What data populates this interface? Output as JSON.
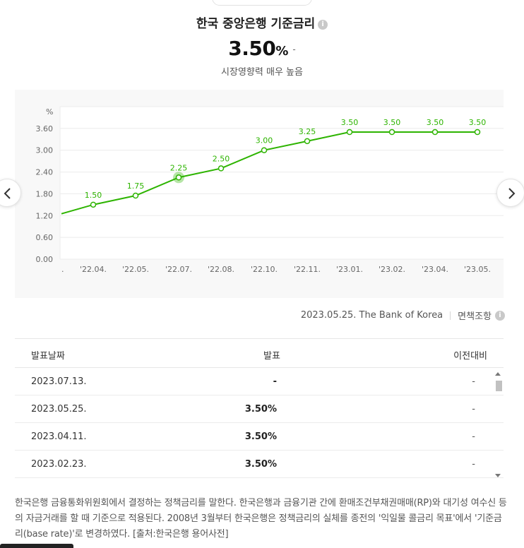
{
  "header": {
    "title": "한국 중앙은행 기준금리",
    "info_icon": "i"
  },
  "rate": {
    "value": "3.50",
    "unit": "%",
    "change": "-",
    "impact": "시장영향력 매우 높음"
  },
  "chart_data": {
    "type": "line",
    "ylabel": "%",
    "yticks": [
      "0.00",
      "0.60",
      "1.20",
      "1.80",
      "2.40",
      "3.00",
      "3.60"
    ],
    "ylim": [
      0,
      4.2
    ],
    "categories": [
      ".",
      "'22.04.",
      "'22.05.",
      "'22.07.",
      "'22.08.",
      "'22.10.",
      "'22.11.",
      "'23.01.",
      "'23.02.",
      "'23.04.",
      "'23.05."
    ],
    "values": [
      1.25,
      1.5,
      1.75,
      2.25,
      2.5,
      3.0,
      3.25,
      3.5,
      3.5,
      3.5,
      3.5
    ],
    "labels": [
      "",
      "1.50",
      "1.75",
      "2.25",
      "2.50",
      "3.00",
      "3.25",
      "3.50",
      "3.50",
      "3.50",
      "3.50"
    ],
    "highlight_index": 3,
    "line_color": "#2db400",
    "grid": true
  },
  "nav": {
    "prev_icon": "chevron-left-icon",
    "next_icon": "chevron-right-icon"
  },
  "source": {
    "text": "2023.05.25. The Bank of Korea",
    "disclaimer": "면책조항"
  },
  "table": {
    "headers": {
      "date": "발표날짜",
      "announcement": "발표",
      "previous": "이전대비"
    },
    "rows": [
      {
        "date": "2023.07.13.",
        "announcement": "-",
        "previous": "-"
      },
      {
        "date": "2023.05.25.",
        "announcement": "3.50%",
        "previous": "-"
      },
      {
        "date": "2023.04.11.",
        "announcement": "3.50%",
        "previous": "-"
      },
      {
        "date": "2023.02.23.",
        "announcement": "3.50%",
        "previous": "-"
      }
    ]
  },
  "description": "한국은행 금융통화위원회에서 결정하는 정책금리를 말한다. 한국은행과 금융기관 간에 환매조건부채권매매(RP)와 대기성 여수신 등의 자금거래를 할 때 기준으로 적용된다. 2008년 3월부터 한국은행은 정책금리의 실체를 종전의 '익일물 콜금리 목표'에서 '기준금리(base rate)'로 변경하였다. [출처:한국은행 용어사전]"
}
